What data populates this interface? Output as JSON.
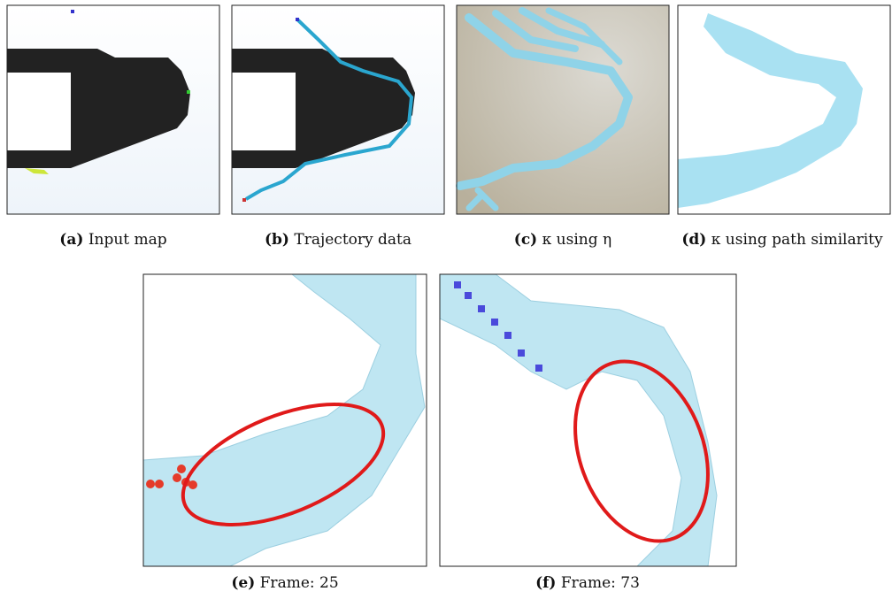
{
  "panels": [
    {
      "label": "(a)",
      "caption": "Input map"
    },
    {
      "label": "(b)",
      "caption": "Trajectory data"
    },
    {
      "label": "(c)",
      "caption": "κ using η"
    },
    {
      "label": "(d)",
      "caption": "κ using path similarity"
    },
    {
      "label": "(e)",
      "caption": "Frame: 25"
    },
    {
      "label": "(f)",
      "caption": "Frame: 73"
    }
  ]
}
